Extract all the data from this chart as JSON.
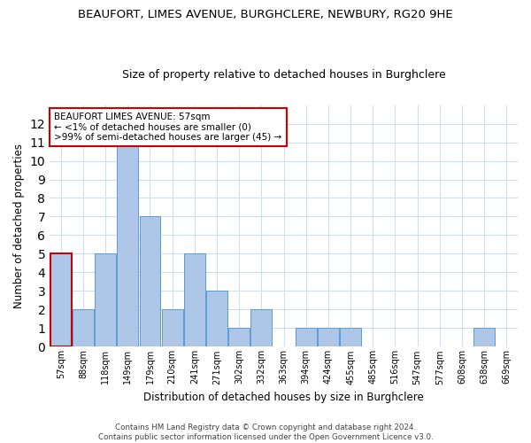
{
  "title": "BEAUFORT, LIMES AVENUE, BURGHCLERE, NEWBURY, RG20 9HE",
  "subtitle": "Size of property relative to detached houses in Burghclere",
  "xlabel": "Distribution of detached houses by size in Burghclere",
  "ylabel": "Number of detached properties",
  "categories": [
    "57sqm",
    "88sqm",
    "118sqm",
    "149sqm",
    "179sqm",
    "210sqm",
    "241sqm",
    "271sqm",
    "302sqm",
    "332sqm",
    "363sqm",
    "394sqm",
    "424sqm",
    "455sqm",
    "485sqm",
    "516sqm",
    "547sqm",
    "577sqm",
    "608sqm",
    "638sqm",
    "669sqm"
  ],
  "values": [
    5,
    2,
    5,
    11,
    7,
    2,
    5,
    3,
    1,
    2,
    0,
    1,
    1,
    1,
    0,
    0,
    0,
    0,
    0,
    1,
    0
  ],
  "bar_color": "#aec6e8",
  "bar_edge_color": "#5b9bd5",
  "highlight_index": 0,
  "highlight_edge_color": "#cc0000",
  "annotation_text": "BEAUFORT LIMES AVENUE: 57sqm\n← <1% of detached houses are smaller (0)\n>99% of semi-detached houses are larger (45) →",
  "annotation_box_color": "#ffffff",
  "annotation_box_edge": "#cc0000",
  "ylim": [
    0,
    13
  ],
  "yticks": [
    0,
    1,
    2,
    3,
    4,
    5,
    6,
    7,
    8,
    9,
    10,
    11,
    12,
    13
  ],
  "background_color": "#ffffff",
  "grid_color": "#ccdded",
  "footer_line1": "Contains HM Land Registry data © Crown copyright and database right 2024.",
  "footer_line2": "Contains public sector information licensed under the Open Government Licence v3.0."
}
